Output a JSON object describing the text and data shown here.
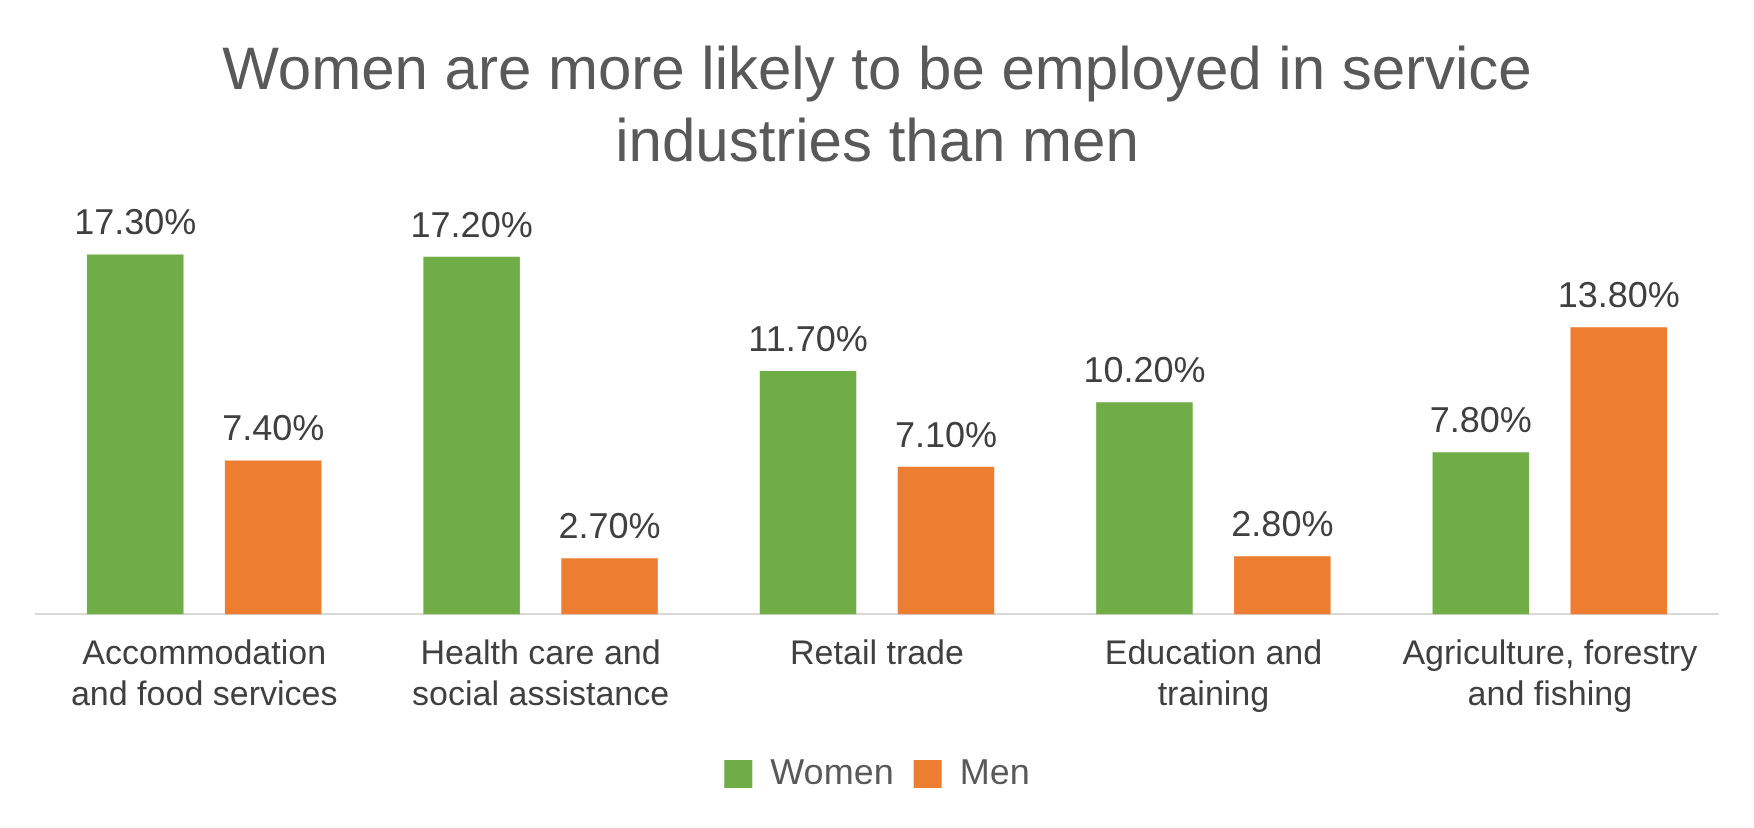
{
  "chart_data": {
    "type": "bar",
    "title": "Women are more likely to be employed in service industries than men",
    "categories": [
      "Accommodation and food services",
      "Health care and social assistance",
      "Retail trade",
      "Education and training",
      "Agriculture, forestry and fishing"
    ],
    "series": [
      {
        "name": "Women",
        "color": "#70ad47",
        "values": [
          17.3,
          17.2,
          11.7,
          10.2,
          7.8
        ],
        "value_labels": [
          "17.30%",
          "17.20%",
          "11.70%",
          "10.20%",
          "7.80%"
        ]
      },
      {
        "name": "Men",
        "color": "#ed7d31",
        "values": [
          7.4,
          2.7,
          7.1,
          2.8,
          13.8
        ],
        "value_labels": [
          "7.40%",
          "2.70%",
          "7.10%",
          "2.80%",
          "13.80%"
        ]
      }
    ],
    "grid": false,
    "legend": "bottom"
  }
}
